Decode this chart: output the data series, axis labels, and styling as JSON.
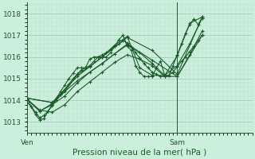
{
  "bg_color": "#cceedd",
  "plot_bg_color": "#cceedd",
  "grid_major_color": "#aaccbb",
  "grid_minor_color": "#bbddcc",
  "line_color": "#1a5c28",
  "xlabel": "Pression niveau de la mer( hPa )",
  "ylim": [
    1012.5,
    1018.5
  ],
  "yticks": [
    1013,
    1014,
    1015,
    1016,
    1017,
    1018
  ],
  "xtick_labels": [
    "Ven",
    "Sam"
  ],
  "xtick_positions": [
    0,
    36
  ],
  "vline_x": 36,
  "total_hours": 54,
  "series": [
    {
      "x": [
        0,
        1,
        2,
        3,
        4,
        5,
        6,
        7,
        8,
        9,
        10,
        11,
        12,
        13,
        14,
        15,
        16,
        17,
        18,
        19,
        20,
        21,
        22,
        23,
        24,
        25,
        26,
        27,
        28,
        29,
        30,
        31,
        32,
        33,
        34,
        35,
        36,
        37,
        38,
        39,
        40,
        41,
        42
      ],
      "y": [
        1014.1,
        1013.7,
        1013.35,
        1013.1,
        1013.15,
        1013.5,
        1013.8,
        1014.1,
        1014.4,
        1014.7,
        1015.0,
        1015.25,
        1015.5,
        1015.5,
        1015.5,
        1015.9,
        1016.0,
        1016.0,
        1016.0,
        1016.0,
        1016.2,
        1016.5,
        1016.8,
        1017.0,
        1016.5,
        1016.3,
        1015.6,
        1015.3,
        1015.1,
        1015.1,
        1015.1,
        1015.5,
        1015.8,
        1015.15,
        1015.15,
        1015.6,
        1016.1,
        1016.6,
        1017.1,
        1017.5,
        1017.75,
        1017.5,
        1017.8
      ]
    },
    {
      "x": [
        0,
        1,
        2,
        3,
        4,
        5,
        6,
        7,
        8,
        9,
        10,
        11,
        12,
        13,
        14,
        15,
        16,
        17,
        18,
        19,
        20,
        21,
        22,
        23,
        24,
        25,
        26,
        27,
        28,
        29,
        30,
        31,
        32,
        33,
        34,
        35,
        36,
        37,
        38,
        39,
        40,
        41,
        42
      ],
      "y": [
        1013.9,
        1013.7,
        1013.45,
        1013.2,
        1013.3,
        1013.5,
        1013.75,
        1014.0,
        1014.25,
        1014.5,
        1014.75,
        1015.0,
        1015.2,
        1015.4,
        1015.5,
        1015.6,
        1015.8,
        1016.0,
        1016.1,
        1016.2,
        1016.35,
        1016.5,
        1016.6,
        1016.75,
        1016.65,
        1016.45,
        1016.2,
        1015.95,
        1015.7,
        1015.5,
        1015.3,
        1015.2,
        1015.1,
        1015.1,
        1015.15,
        1015.3,
        1015.55,
        1015.8,
        1016.0,
        1016.25,
        1016.5,
        1016.75,
        1017.0
      ]
    },
    {
      "x": [
        0,
        3,
        6,
        9,
        12,
        15,
        18,
        21,
        24,
        27,
        30,
        33,
        36,
        39,
        42
      ],
      "y": [
        1014.05,
        1013.5,
        1013.85,
        1014.4,
        1015.2,
        1015.55,
        1016.0,
        1016.55,
        1016.95,
        1015.5,
        1015.15,
        1015.15,
        1016.05,
        1017.55,
        1017.85
      ]
    },
    {
      "x": [
        0,
        3,
        6,
        9,
        12,
        15,
        18,
        21,
        24,
        27,
        30,
        33,
        36,
        39,
        42
      ],
      "y": [
        1014.05,
        1013.5,
        1013.8,
        1014.2,
        1014.8,
        1015.3,
        1015.7,
        1016.15,
        1016.55,
        1016.2,
        1015.7,
        1015.15,
        1015.6,
        1016.6,
        1017.8
      ]
    },
    {
      "x": [
        0,
        3,
        6,
        9,
        12,
        15,
        18,
        21,
        24,
        27,
        30,
        33,
        36,
        39,
        42
      ],
      "y": [
        1014.05,
        1013.55,
        1013.45,
        1013.8,
        1014.4,
        1014.85,
        1015.3,
        1015.75,
        1016.1,
        1015.9,
        1015.6,
        1015.1,
        1015.1,
        1016.1,
        1017.2
      ]
    },
    {
      "x": [
        0,
        6,
        12,
        18,
        24,
        30,
        36,
        42
      ],
      "y": [
        1014.1,
        1013.9,
        1015.1,
        1016.0,
        1016.9,
        1016.3,
        1015.2,
        1017.85
      ]
    },
    {
      "x": [
        0,
        6,
        12,
        18,
        24,
        30,
        36,
        42
      ],
      "y": [
        1014.1,
        1013.9,
        1014.9,
        1015.7,
        1016.6,
        1015.85,
        1015.1,
        1017.0
      ]
    }
  ]
}
